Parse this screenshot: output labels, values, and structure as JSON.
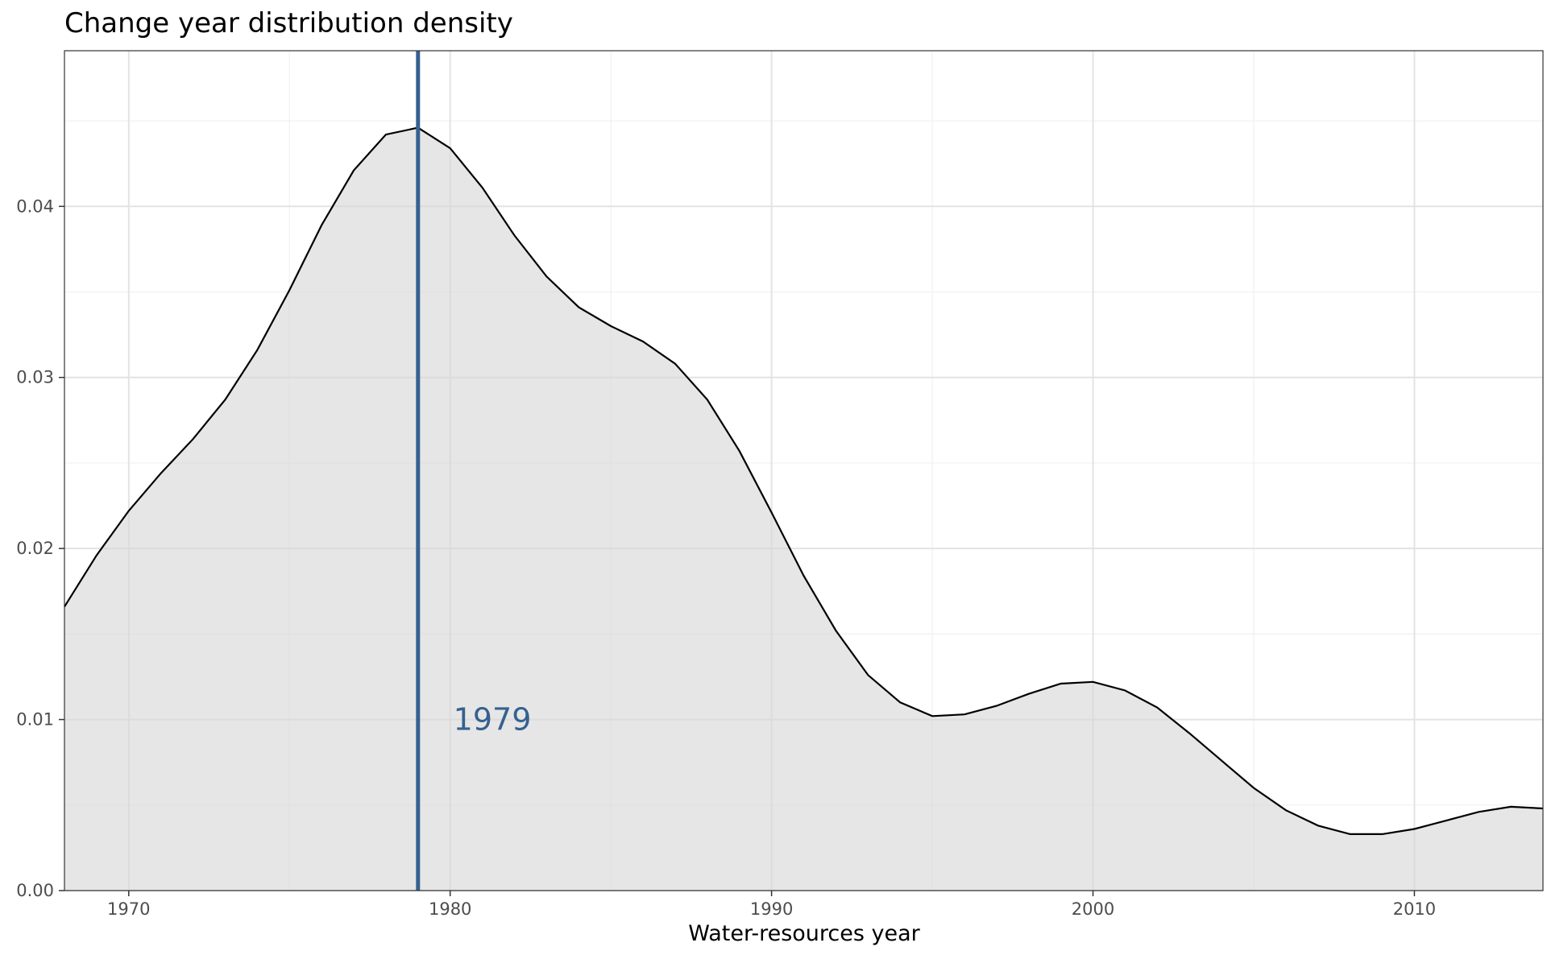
{
  "chart_data": {
    "type": "area",
    "title": "Change year distribution density",
    "xlabel": "Water-resources year",
    "ylabel": "",
    "xlim": [
      1968,
      2014
    ],
    "ylim": [
      0,
      0.0491
    ],
    "x_ticks": [
      1970,
      1980,
      1990,
      2000,
      2010
    ],
    "y_ticks": [
      0,
      0.01,
      0.02,
      0.03,
      0.04
    ],
    "y_tick_labels": [
      "0.00",
      "0.01",
      "0.02",
      "0.03",
      "0.04"
    ],
    "grid": true,
    "fill_color": "#d6d6d6",
    "line_color": "#000000",
    "x": [
      1968,
      1969,
      1970,
      1971,
      1972,
      1973,
      1974,
      1975,
      1976,
      1977,
      1978,
      1979,
      1980,
      1981,
      1982,
      1983,
      1984,
      1985,
      1986,
      1987,
      1988,
      1989,
      1990,
      1991,
      1992,
      1993,
      1994,
      1995,
      1996,
      1997,
      1998,
      1999,
      2000,
      2001,
      2002,
      2003,
      2004,
      2005,
      2006,
      2007,
      2008,
      2009,
      2010,
      2011,
      2012,
      2013,
      2014
    ],
    "y": [
      0.0166,
      0.0196,
      0.0222,
      0.0244,
      0.0264,
      0.0287,
      0.0316,
      0.0351,
      0.0389,
      0.0421,
      0.0442,
      0.0446,
      0.0434,
      0.0411,
      0.0383,
      0.0359,
      0.0341,
      0.033,
      0.0321,
      0.0308,
      0.0287,
      0.0257,
      0.0221,
      0.0184,
      0.0152,
      0.0126,
      0.011,
      0.0102,
      0.0103,
      0.0108,
      0.0115,
      0.0121,
      0.0122,
      0.0117,
      0.0107,
      0.0092,
      0.0076,
      0.006,
      0.0047,
      0.0038,
      0.0033,
      0.0033,
      0.0036,
      0.0041,
      0.0046,
      0.0049,
      0.0048
    ],
    "annotation": {
      "vline_x": 1979,
      "label": "1979",
      "label_x": 1980.1,
      "label_y": 0.01,
      "color": "#35618f"
    }
  }
}
